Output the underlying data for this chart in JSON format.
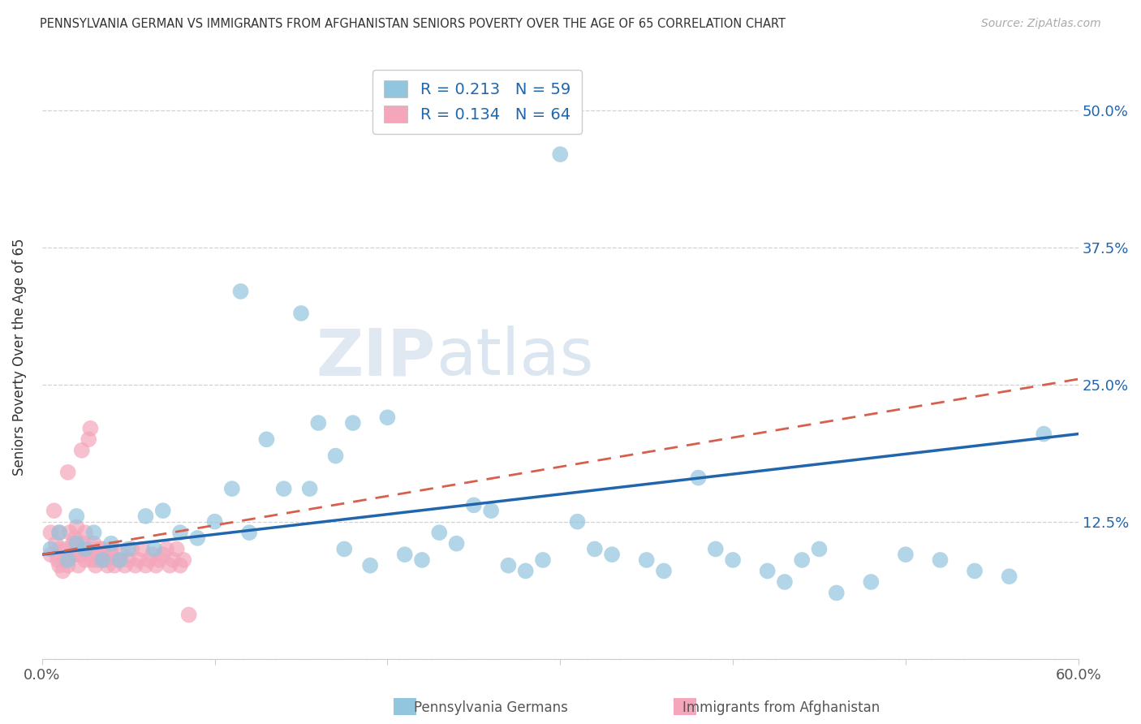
{
  "title": "PENNSYLVANIA GERMAN VS IMMIGRANTS FROM AFGHANISTAN SENIORS POVERTY OVER THE AGE OF 65 CORRELATION CHART",
  "source": "Source: ZipAtlas.com",
  "ylabel": "Seniors Poverty Over the Age of 65",
  "xlim": [
    0,
    0.6
  ],
  "ylim": [
    0,
    0.55
  ],
  "xtick_positions": [
    0.0,
    0.1,
    0.2,
    0.3,
    0.4,
    0.5,
    0.6
  ],
  "xticklabels": [
    "0.0%",
    "",
    "",
    "",
    "",
    "",
    "60.0%"
  ],
  "ytick_positions": [
    0.0,
    0.125,
    0.25,
    0.375,
    0.5
  ],
  "ytick_labels": [
    "",
    "12.5%",
    "25.0%",
    "37.5%",
    "50.0%"
  ],
  "watermark": "ZIPatlas",
  "legend_R_blue": "0.213",
  "legend_N_blue": "59",
  "legend_R_pink": "0.134",
  "legend_N_pink": "64",
  "blue_color": "#92c5de",
  "blue_line_color": "#2166ac",
  "pink_color": "#f4a6bb",
  "pink_line_color": "#d6604d",
  "grid_color": "#cccccc",
  "title_color": "#333333",
  "legend_text_color": "#2166ac",
  "blue_scatter_x": [
    0.005,
    0.01,
    0.015,
    0.02,
    0.02,
    0.025,
    0.03,
    0.035,
    0.04,
    0.045,
    0.05,
    0.06,
    0.065,
    0.07,
    0.08,
    0.09,
    0.1,
    0.11,
    0.115,
    0.12,
    0.13,
    0.14,
    0.15,
    0.155,
    0.16,
    0.17,
    0.175,
    0.18,
    0.19,
    0.2,
    0.21,
    0.22,
    0.23,
    0.24,
    0.25,
    0.26,
    0.27,
    0.28,
    0.29,
    0.3,
    0.31,
    0.32,
    0.33,
    0.35,
    0.36,
    0.38,
    0.39,
    0.4,
    0.42,
    0.43,
    0.44,
    0.45,
    0.46,
    0.48,
    0.5,
    0.52,
    0.54,
    0.56,
    0.58
  ],
  "blue_scatter_y": [
    0.1,
    0.115,
    0.09,
    0.105,
    0.13,
    0.1,
    0.115,
    0.09,
    0.105,
    0.09,
    0.1,
    0.13,
    0.1,
    0.135,
    0.115,
    0.11,
    0.125,
    0.155,
    0.335,
    0.115,
    0.2,
    0.155,
    0.315,
    0.155,
    0.215,
    0.185,
    0.1,
    0.215,
    0.085,
    0.22,
    0.095,
    0.09,
    0.115,
    0.105,
    0.14,
    0.135,
    0.085,
    0.08,
    0.09,
    0.46,
    0.125,
    0.1,
    0.095,
    0.09,
    0.08,
    0.165,
    0.1,
    0.09,
    0.08,
    0.07,
    0.09,
    0.1,
    0.06,
    0.07,
    0.095,
    0.09,
    0.08,
    0.075,
    0.205
  ],
  "pink_scatter_x": [
    0.005,
    0.005,
    0.007,
    0.008,
    0.009,
    0.01,
    0.01,
    0.01,
    0.012,
    0.013,
    0.014,
    0.015,
    0.015,
    0.016,
    0.017,
    0.018,
    0.019,
    0.02,
    0.02,
    0.02,
    0.021,
    0.022,
    0.023,
    0.024,
    0.025,
    0.025,
    0.026,
    0.027,
    0.028,
    0.029,
    0.03,
    0.03,
    0.031,
    0.032,
    0.033,
    0.034,
    0.035,
    0.036,
    0.037,
    0.038,
    0.04,
    0.04,
    0.042,
    0.044,
    0.046,
    0.048,
    0.05,
    0.052,
    0.054,
    0.056,
    0.058,
    0.06,
    0.062,
    0.064,
    0.066,
    0.068,
    0.07,
    0.072,
    0.074,
    0.076,
    0.078,
    0.08,
    0.082,
    0.085
  ],
  "pink_scatter_y": [
    0.095,
    0.115,
    0.135,
    0.105,
    0.09,
    0.085,
    0.1,
    0.115,
    0.08,
    0.09,
    0.1,
    0.085,
    0.17,
    0.115,
    0.095,
    0.105,
    0.11,
    0.095,
    0.105,
    0.12,
    0.085,
    0.095,
    0.19,
    0.105,
    0.115,
    0.09,
    0.095,
    0.2,
    0.21,
    0.09,
    0.1,
    0.105,
    0.085,
    0.09,
    0.095,
    0.1,
    0.1,
    0.095,
    0.09,
    0.085,
    0.095,
    0.1,
    0.085,
    0.09,
    0.095,
    0.085,
    0.09,
    0.1,
    0.085,
    0.09,
    0.1,
    0.085,
    0.09,
    0.095,
    0.085,
    0.09,
    0.095,
    0.1,
    0.085,
    0.09,
    0.1,
    0.085,
    0.09,
    0.04
  ],
  "blue_trendline": [
    0.095,
    0.205
  ],
  "pink_trendline": [
    0.095,
    0.255
  ]
}
